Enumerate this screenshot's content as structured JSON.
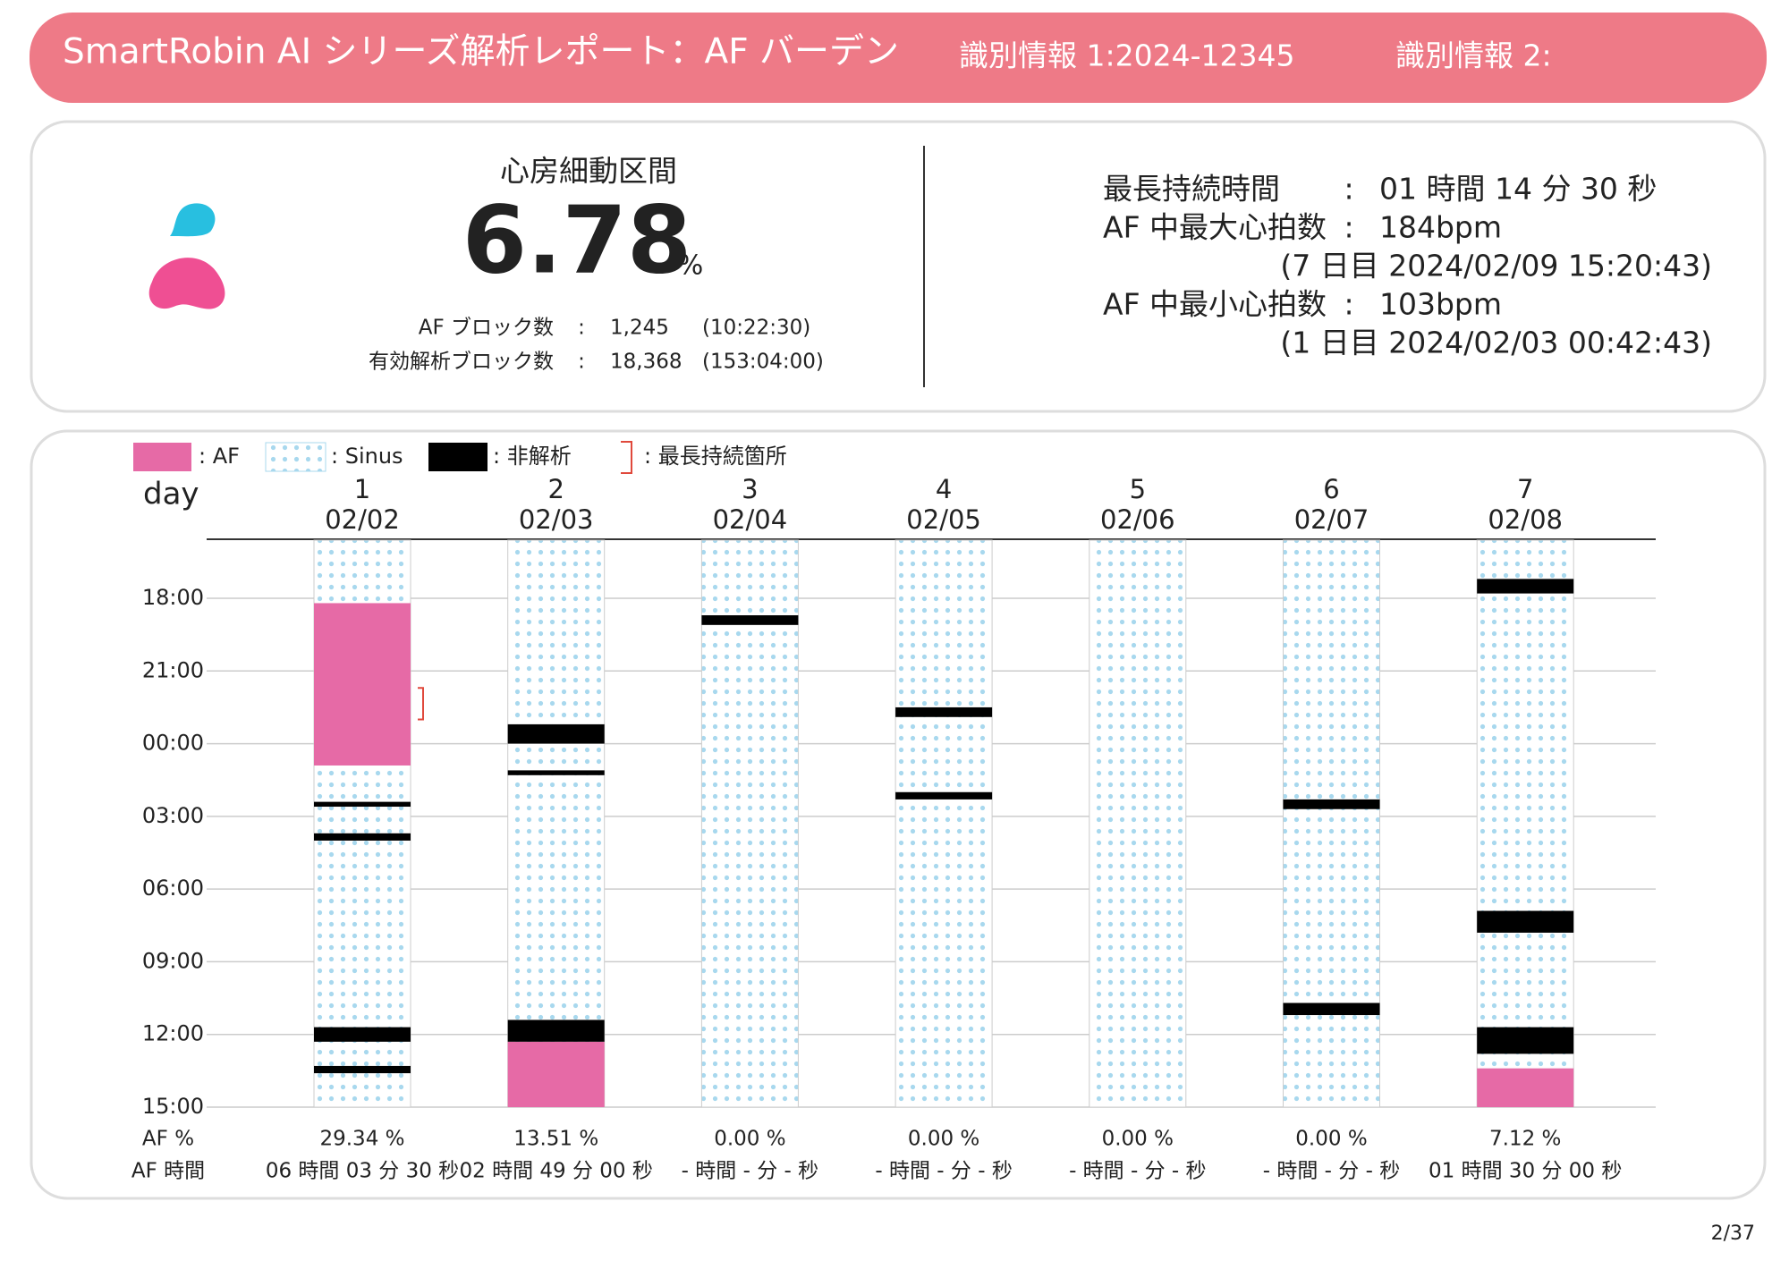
{
  "header": {
    "title": "SmartRobin AI シリーズ解析レポート：AF バーデン",
    "id1": "識別情報 1:2024-12345",
    "id2": "識別情報 2:"
  },
  "summary": {
    "heading": "心房細動区間",
    "value": "6.78",
    "unit": "%",
    "rows": [
      {
        "label": "AF ブロック数",
        "sep": ":",
        "count": "1,245",
        "time": "(10:22:30)"
      },
      {
        "label": "有効解析ブロック数",
        "sep": ":",
        "count": "18,368",
        "time": "(153:04:00)"
      }
    ],
    "stats": [
      {
        "label": "最長持続時間",
        "sep": ":",
        "value": "01 時間 14 分 30 秒",
        "note": null
      },
      {
        "label": "AF 中最大心拍数",
        "sep": ":",
        "value": "184bpm",
        "note": "(7 日目 2024/02/09 15:20:43)"
      },
      {
        "label": "AF 中最小心拍数",
        "sep": ":",
        "value": "103bpm",
        "note": "(1 日目 2024/02/03 00:42:43)"
      }
    ]
  },
  "chart_data": {
    "type": "timeline",
    "legend": [
      {
        "label": ": AF",
        "color": "#e66aa6"
      },
      {
        "label": ": Sinus",
        "color": "#a8d8ee"
      },
      {
        "label": ": 非解析",
        "color": "#000000"
      },
      {
        "label": ": 最長持続箇所",
        "color": "#e0493c"
      }
    ],
    "axis_label": "day",
    "ylim": [
      15.6,
      39
    ],
    "yticks": [
      {
        "value": 18,
        "label": "18:00"
      },
      {
        "value": 21,
        "label": "21:00"
      },
      {
        "value": 24,
        "label": "00:00"
      },
      {
        "value": 27,
        "label": "03:00"
      },
      {
        "value": 30,
        "label": "06:00"
      },
      {
        "value": 33,
        "label": "09:00"
      },
      {
        "value": 36,
        "label": "12:00"
      },
      {
        "value": 39,
        "label": "15:00"
      }
    ],
    "grid": true,
    "row_labels": [
      "AF %",
      "AF 時間"
    ],
    "days": [
      {
        "day": "1",
        "date": "02/02",
        "af_percent": "29.34 %",
        "af_time": "06 時間 03 分 30 秒",
        "af": [
          [
            18.2,
            24.9
          ]
        ],
        "nonanalysis": [
          [
            26.4,
            26.6
          ],
          [
            27.7,
            28.0
          ],
          [
            35.7,
            36.3
          ],
          [
            37.3,
            37.6
          ]
        ],
        "longest": [
          21.7,
          23.0
        ]
      },
      {
        "day": "2",
        "date": "02/03",
        "af_percent": "13.51 %",
        "af_time": "02 時間 49 分 00 秒",
        "af": [
          [
            36.3,
            39
          ]
        ],
        "nonanalysis": [
          [
            23.2,
            24.0
          ],
          [
            25.1,
            25.3
          ],
          [
            35.4,
            36.3
          ]
        ]
      },
      {
        "day": "3",
        "date": "02/04",
        "af_percent": "0.00 %",
        "af_time": "- 時間 - 分 - 秒",
        "af": [],
        "nonanalysis": [
          [
            18.7,
            19.1
          ]
        ]
      },
      {
        "day": "4",
        "date": "02/05",
        "af_percent": "0.00 %",
        "af_time": "- 時間 - 分 - 秒",
        "af": [],
        "nonanalysis": [
          [
            22.5,
            22.9
          ],
          [
            26.0,
            26.3
          ]
        ]
      },
      {
        "day": "5",
        "date": "02/06",
        "af_percent": "0.00 %",
        "af_time": "- 時間 - 分 - 秒",
        "af": [],
        "nonanalysis": []
      },
      {
        "day": "6",
        "date": "02/07",
        "af_percent": "0.00 %",
        "af_time": "- 時間 - 分 - 秒",
        "af": [],
        "nonanalysis": [
          [
            26.3,
            26.7
          ],
          [
            34.7,
            35.2
          ]
        ]
      },
      {
        "day": "7",
        "date": "02/08",
        "af_percent": "7.12 %",
        "af_time": "01 時間 30 分 00 秒",
        "af": [
          [
            37.4,
            39
          ]
        ],
        "nonanalysis": [
          [
            17.2,
            17.8
          ],
          [
            30.9,
            31.8
          ],
          [
            35.7,
            36.8
          ]
        ]
      }
    ]
  },
  "page": "2/37"
}
